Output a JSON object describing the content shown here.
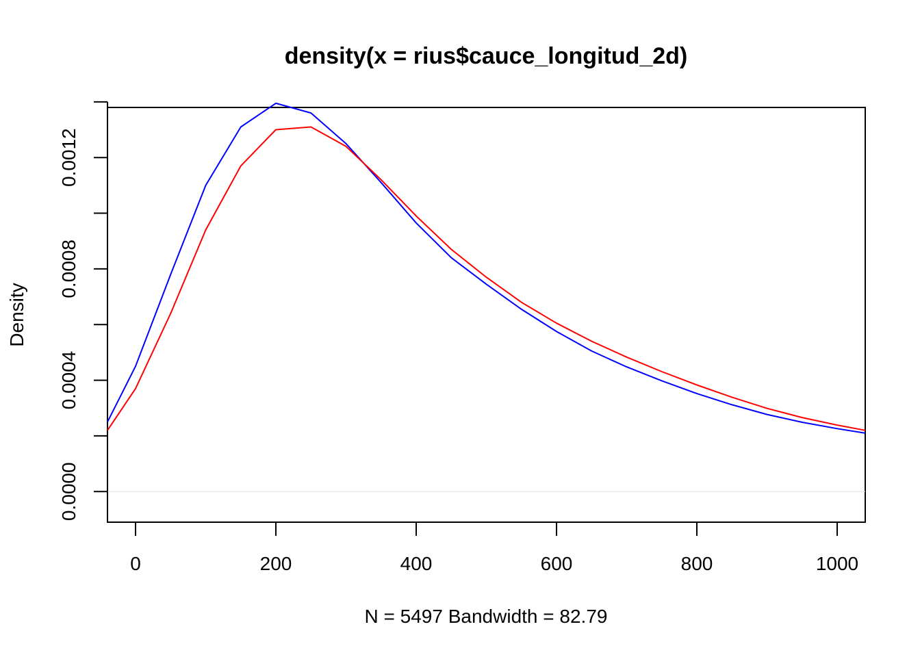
{
  "chart_data": {
    "type": "line",
    "title": "density(x = rius$cauce_longitud_2d)",
    "xlabel": "N = 5497   Bandwidth = 82.79",
    "ylabel": "Density",
    "xlim": [
      -40,
      1040
    ],
    "ylim": [
      -0.00011,
      0.00138
    ],
    "x_ticks": [
      0,
      200,
      400,
      600,
      800,
      1000
    ],
    "x_tick_labels": [
      "0",
      "200",
      "400",
      "600",
      "800",
      "1000"
    ],
    "y_ticks": [
      0.0,
      0.0002,
      0.0004,
      0.0006,
      0.0008,
      0.001,
      0.0012,
      0.0014
    ],
    "y_tick_labels": [
      "0.0000",
      "",
      "0.0004",
      "",
      "0.0008",
      "",
      "0.0012",
      ""
    ],
    "baseline": 0,
    "series": [
      {
        "name": "blue",
        "color": "#0000FF",
        "x": [
          -40,
          0,
          50,
          100,
          150,
          200,
          250,
          300,
          350,
          400,
          450,
          500,
          550,
          600,
          650,
          700,
          750,
          800,
          850,
          900,
          950,
          1000,
          1040
        ],
        "y": [
          0.00025,
          0.00045,
          0.00078,
          0.0011,
          0.00131,
          0.001395,
          0.00136,
          0.00125,
          0.00111,
          0.000965,
          0.00084,
          0.000745,
          0.000655,
          0.000575,
          0.000505,
          0.000448,
          0.000398,
          0.000352,
          0.000312,
          0.000277,
          0.000249,
          0.000226,
          0.00021
        ]
      },
      {
        "name": "red",
        "color": "#FF0000",
        "x": [
          -40,
          0,
          50,
          100,
          150,
          200,
          250,
          300,
          350,
          400,
          450,
          500,
          550,
          600,
          650,
          700,
          750,
          800,
          850,
          900,
          950,
          1000,
          1040
        ],
        "y": [
          0.00022,
          0.00037,
          0.00064,
          0.00094,
          0.00117,
          0.0013,
          0.00131,
          0.00124,
          0.00112,
          0.00099,
          0.00087,
          0.00077,
          0.00068,
          0.000605,
          0.00054,
          0.000483,
          0.000431,
          0.000383,
          0.000339,
          0.000299,
          0.000266,
          0.000239,
          0.00022
        ]
      }
    ]
  }
}
